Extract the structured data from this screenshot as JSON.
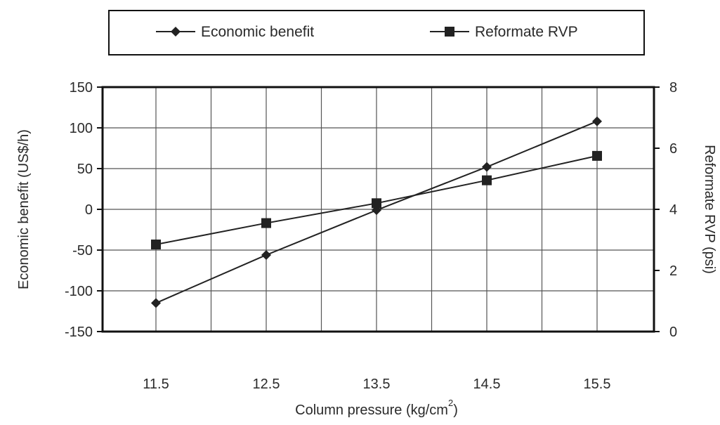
{
  "chart_data": {
    "type": "line",
    "x": [
      11.5,
      12.5,
      13.5,
      14.5,
      15.5
    ],
    "x_ticks": [
      "11.5",
      "12.5",
      "13.5",
      "14.5",
      "15.5"
    ],
    "xlabel": "Column pressure (kg/cm",
    "xlabel_superscript": "2",
    "xlabel_suffix": ")",
    "ylabel": "Economic benefit (US$/h)",
    "ylabel_right": "Reformate RVP (psi)",
    "ylim": [
      -150,
      150
    ],
    "ylim_right": [
      0,
      8
    ],
    "y_ticks": [
      "150",
      "100",
      "50",
      "0",
      "-50",
      "-100",
      "-150"
    ],
    "y_ticks_right": [
      "8",
      "6",
      "4",
      "2",
      "0"
    ],
    "grid": true,
    "legend_position": "top",
    "series": [
      {
        "name": "Economic benefit",
        "axis": "left",
        "marker": "diamond",
        "values": [
          -115,
          -56,
          -1,
          52,
          108
        ]
      },
      {
        "name": "Reformate RVP",
        "axis": "right",
        "marker": "square",
        "values": [
          2.85,
          3.55,
          4.2,
          4.95,
          5.75
        ]
      }
    ],
    "colors": {
      "line": "#222222",
      "axis": "#111111",
      "grid": "#555555"
    }
  }
}
